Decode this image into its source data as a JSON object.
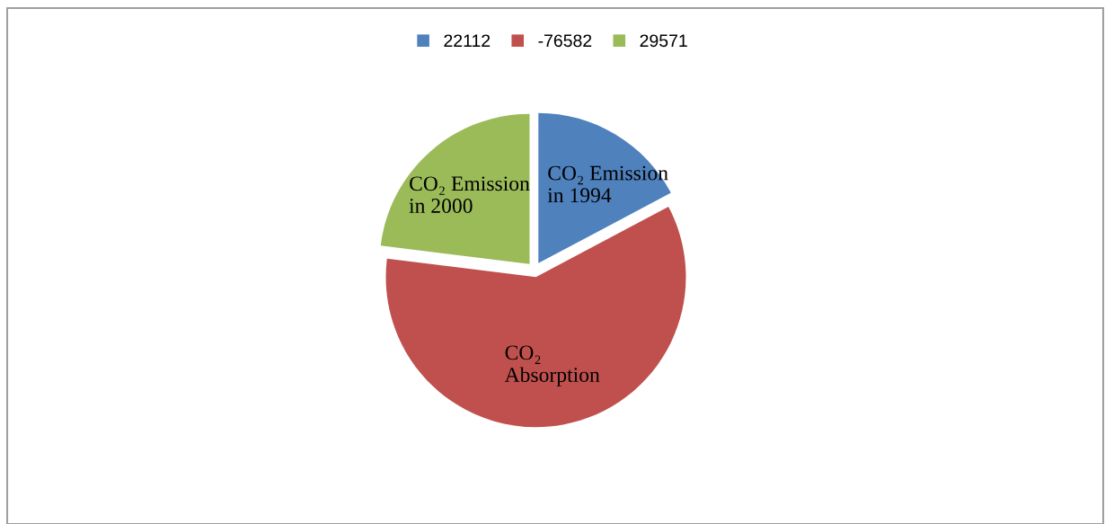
{
  "chart_data": {
    "type": "pie",
    "categories": [
      "22112",
      "-76582",
      "29571"
    ],
    "values": [
      17.24,
      59.71,
      23.05
    ],
    "colors": [
      "#4f81bd",
      "#c0504d",
      "#9bbb59"
    ],
    "legend": "top",
    "annotations": [
      "CO₂ Emission\nin 1994",
      "CO₂\nAbsorption",
      "CO₂ Emission\nin 2000"
    ]
  }
}
